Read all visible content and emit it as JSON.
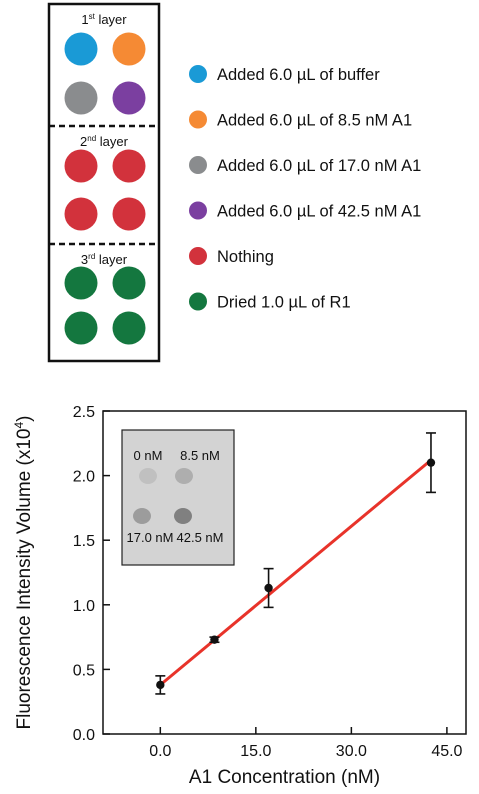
{
  "diagram": {
    "layers": [
      {
        "label": "1",
        "sup": "st",
        "suffix": " layer",
        "dots": [
          "buffer",
          "a1_8_5",
          "a1_17_0",
          "a1_42_5"
        ]
      },
      {
        "label": "2",
        "sup": "nd",
        "suffix": " layer",
        "dots": [
          "nothing",
          "nothing",
          "nothing",
          "nothing"
        ]
      },
      {
        "label": "3",
        "sup": "rd",
        "suffix": " layer",
        "dots": [
          "r1",
          "r1",
          "r1",
          "r1"
        ]
      }
    ],
    "legend": [
      {
        "key": "buffer",
        "label": "Added 6.0 µL of buffer",
        "color": "#1a9ad6"
      },
      {
        "key": "a1_8_5",
        "label": "Added 6.0 µL of 8.5 nM A1",
        "color": "#f58a34"
      },
      {
        "key": "a1_17_0",
        "label": "Added 6.0 µL of 17.0 nM A1",
        "color": "#8a8c8e"
      },
      {
        "key": "a1_42_5",
        "label": "Added 6.0 µL of 42.5 nM A1",
        "color": "#7b3fa0"
      },
      {
        "key": "nothing",
        "label": "Nothing",
        "color": "#d2323c"
      },
      {
        "key": "r1",
        "label": "Dried 1.0 µL of  R1",
        "color": "#14773f"
      }
    ]
  },
  "inset": {
    "labels": [
      "0 nM",
      "8.5 nM",
      "17.0 nM",
      "42.5 nM"
    ],
    "spot_intensity": [
      0.12,
      0.28,
      0.45,
      0.7
    ]
  },
  "chart_data": {
    "type": "scatter",
    "xlabel": "A1 Concentration (nM)",
    "ylabel": "Fluorescence Intensity Volume (x10",
    "ylabel_sup": "4",
    "ylabel_tail": ")",
    "xlim": [
      -9,
      48
    ],
    "ylim": [
      0,
      2.5
    ],
    "xticks": [
      0,
      15,
      30,
      45
    ],
    "xtick_labels": [
      "0.0",
      "15.0",
      "30.0",
      "45.0"
    ],
    "yticks": [
      0,
      0.5,
      1.0,
      1.5,
      2.0,
      2.5
    ],
    "ytick_labels": [
      "0.0",
      "0.5",
      "1.0",
      "1.5",
      "2.0",
      "2.5"
    ],
    "series": [
      {
        "x": [
          0,
          8.5,
          17.0,
          42.5
        ],
        "y": [
          0.38,
          0.73,
          1.13,
          2.1
        ],
        "error": [
          0.07,
          0.02,
          0.15,
          0.23
        ],
        "marker_color": "#111111"
      }
    ],
    "fit_line": {
      "x": [
        0,
        42.5
      ],
      "y": [
        0.38,
        2.12
      ],
      "color": "#e8332a"
    }
  }
}
